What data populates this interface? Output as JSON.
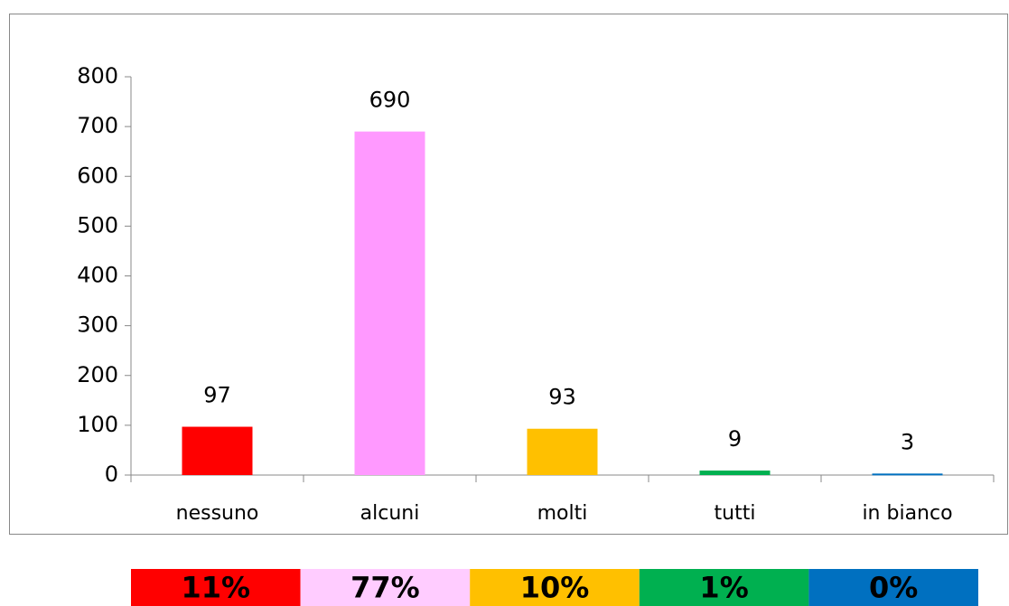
{
  "chart_data": {
    "type": "bar",
    "categories": [
      "nessuno",
      "alcuni",
      "molti",
      "tutti",
      "in bianco"
    ],
    "values": [
      97,
      690,
      93,
      9,
      3
    ],
    "colors": [
      "#ff0000",
      "#ff99ff",
      "#ffc000",
      "#00b050",
      "#0070c0"
    ],
    "ylim": [
      0,
      800
    ],
    "yticks": [
      0,
      100,
      200,
      300,
      400,
      500,
      600,
      700,
      800
    ],
    "grid": false,
    "share_labels": [
      "11%",
      "77%",
      "10%",
      "1%",
      "0%"
    ],
    "share_colors": [
      "#ff0000",
      "#ffccff",
      "#ffc000",
      "#00b050",
      "#0070c0"
    ]
  }
}
